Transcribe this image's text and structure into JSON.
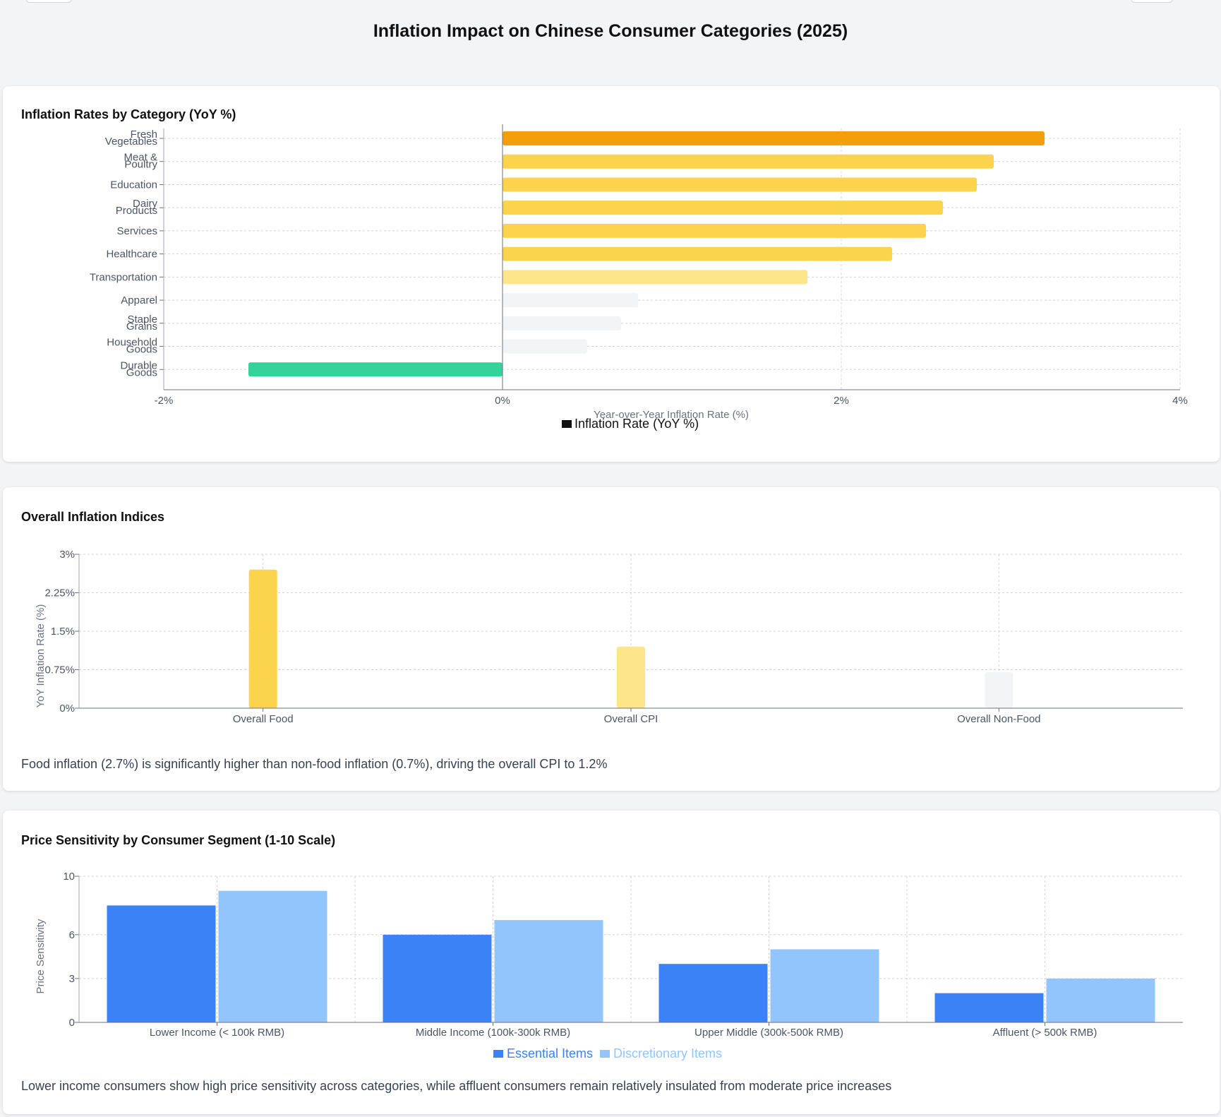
{
  "page": {
    "title": "Inflation Impact on Chinese Consumer Categories (2025)"
  },
  "colors": {
    "high": "#f59e0b",
    "elevated": "#fcd34d",
    "moderate": "#fde68a",
    "low": "#f3f4f6",
    "negative": "#34d399",
    "essential": "#3b82f6",
    "discretionary": "#93c5fd"
  },
  "cards": {
    "categories": {
      "title": "Inflation Rates by Category (YoY %)"
    },
    "indices": {
      "title": "Overall Inflation Indices",
      "note": "Food inflation (2.7%) is significantly higher than non-food inflation (0.7%), driving the overall CPI to 1.2%"
    },
    "sensitivity": {
      "title": "Price Sensitivity by Consumer Segment (1-10 Scale)",
      "note": "Lower income consumers show high price sensitivity across categories, while affluent consumers remain relatively insulated from moderate price increases"
    }
  },
  "chart_data": [
    {
      "type": "bar",
      "orientation": "horizontal",
      "title": "Inflation Rates by Category (YoY %)",
      "categories": [
        [
          "Fresh",
          "Vegetables"
        ],
        [
          "Meat &",
          "Poultry"
        ],
        [
          "Education"
        ],
        [
          "Dairy",
          "Products"
        ],
        [
          "Services"
        ],
        [
          "Healthcare"
        ],
        [
          "Transportation"
        ],
        [
          "Apparel"
        ],
        [
          "Staple",
          "Grains"
        ],
        [
          "Household",
          "Goods"
        ],
        [
          "Durable",
          "Goods"
        ]
      ],
      "values": [
        3.2,
        2.9,
        2.8,
        2.6,
        2.5,
        2.3,
        1.8,
        0.8,
        0.7,
        0.5,
        -1.5
      ],
      "bar_colors": [
        "high",
        "elevated",
        "elevated",
        "elevated",
        "elevated",
        "elevated",
        "moderate",
        "low",
        "low",
        "low",
        "negative"
      ],
      "xlabel": "Year-over-Year Inflation Rate (%)",
      "xlim": [
        -2,
        4
      ],
      "xticks": [
        "-2%",
        "0%",
        "2%",
        "4%"
      ],
      "xtick_values": [
        -2,
        0,
        2,
        4
      ],
      "legend": [
        "Inflation Rate (YoY %)"
      ],
      "legend_position": "bottom",
      "grid": true
    },
    {
      "type": "bar",
      "title": "Overall Inflation Indices",
      "categories": [
        "Overall Food",
        "Overall CPI",
        "Overall Non-Food"
      ],
      "values": [
        2.7,
        1.2,
        0.7
      ],
      "bar_colors": [
        "elevated",
        "moderate",
        "low"
      ],
      "ylabel": "YoY Inflation Rate (%)",
      "ylim": [
        0,
        3
      ],
      "yticks": [
        "0%",
        "0.75%",
        "1.5%",
        "2.25%",
        "3%"
      ],
      "ytick_values": [
        0,
        0.75,
        1.5,
        2.25,
        3
      ],
      "grid": true
    },
    {
      "type": "bar",
      "title": "Price Sensitivity by Consumer Segment (1-10 Scale)",
      "categories": [
        "Lower Income (< 100k RMB)",
        "Middle Income (100k-300k RMB)",
        "Upper Middle (300k-500k RMB)",
        "Affluent (> 500k RMB)"
      ],
      "series": [
        {
          "name": "Essential Items",
          "values": [
            8,
            6,
            4,
            2
          ],
          "color": "essential"
        },
        {
          "name": "Discretionary Items",
          "values": [
            9,
            7,
            5,
            3
          ],
          "color": "discretionary"
        }
      ],
      "ylabel": "Price Sensitivity",
      "ylim": [
        0,
        10
      ],
      "yticks": [
        "0",
        "3",
        "6",
        "10"
      ],
      "ytick_values": [
        0,
        3,
        6,
        10
      ],
      "legend_position": "bottom",
      "grid": true
    }
  ]
}
